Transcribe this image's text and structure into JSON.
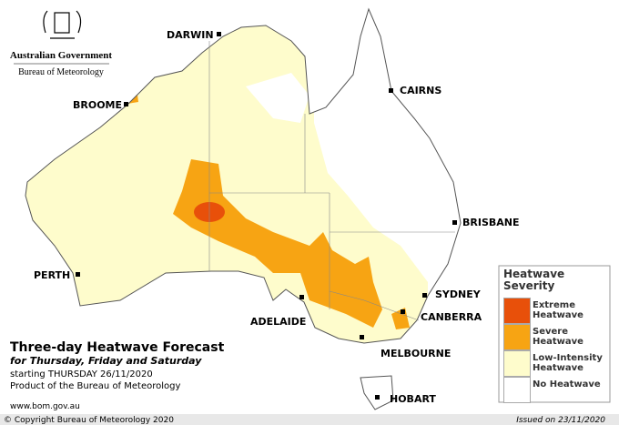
{
  "header": {
    "government": "Australian Government",
    "bureau": "Bureau of Meteorology"
  },
  "title": "Three-day Heatwave Forecast",
  "subtitle": "for Thursday, Friday and Saturday",
  "starting": "starting THURSDAY 26/11/2020",
  "product": "Product of the Bureau of Meteorology",
  "website": "www.bom.gov.au",
  "cities": [
    "DARWIN",
    "CAIRNS",
    "BROOME",
    "BRISBANE",
    "PERTH",
    "SYDNEY",
    "CANBERRA",
    "ADELAIDE",
    "MELBOURNE",
    "HOBART"
  ],
  "legend": {
    "title": "Heatwave Severity",
    "items": [
      {
        "label": "Extreme Heatwave",
        "color": "#e8500a"
      },
      {
        "label": "Severe Heatwave",
        "color": "#f7a413"
      },
      {
        "label": "Low-Intensity Heatwave",
        "color": "#fefccc"
      },
      {
        "label": "No Heatwave",
        "color": "#ffffff"
      }
    ]
  },
  "footer": {
    "copyright": "© Copyright Bureau of Meteorology 2020",
    "issued": "Issued on 23/11/2020"
  }
}
